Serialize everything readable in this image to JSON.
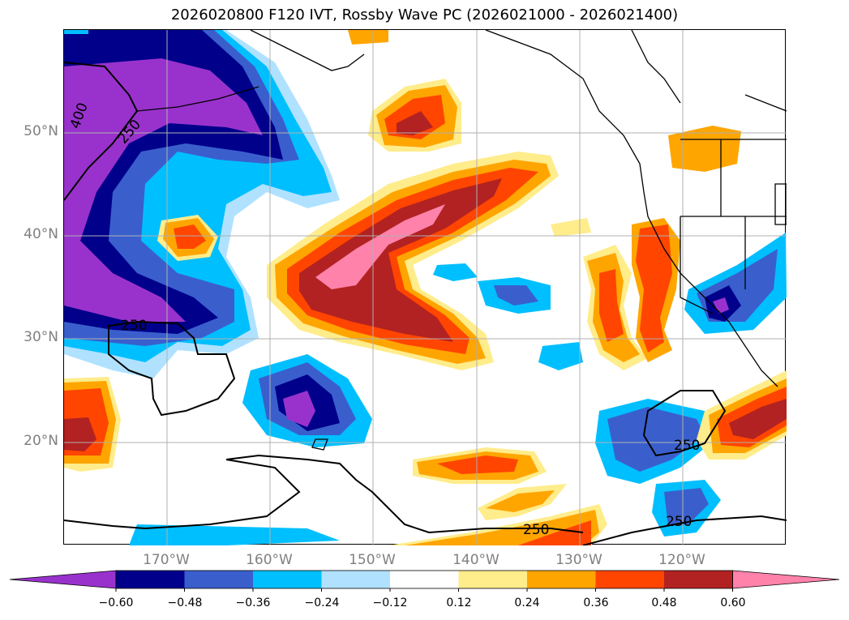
{
  "title": "2026020800 F120 IVT, Rossby Wave PC (2026021000 - 2026021400)",
  "lat_labels": [
    "50°N",
    "40°N",
    "30°N",
    "20°N"
  ],
  "lon_labels": [
    "170°W",
    "160°W",
    "150°W",
    "140°W",
    "130°W",
    "120°W"
  ],
  "contour_labels": [
    "400",
    "250",
    "250",
    "250",
    "250",
    "250"
  ],
  "colorbar": {
    "ticks": [
      "−0.60",
      "−0.48",
      "−0.36",
      "−0.24",
      "−0.12",
      "0.12",
      "0.24",
      "0.36",
      "0.48",
      "0.60"
    ],
    "colors": [
      "#9932cc",
      "#00008b",
      "#3a5fcd",
      "#00bfff",
      "#b0e2ff",
      "#ffffff",
      "#ffec8b",
      "#ffa500",
      "#ff4500",
      "#b22222",
      "#ff82ab"
    ]
  }
}
